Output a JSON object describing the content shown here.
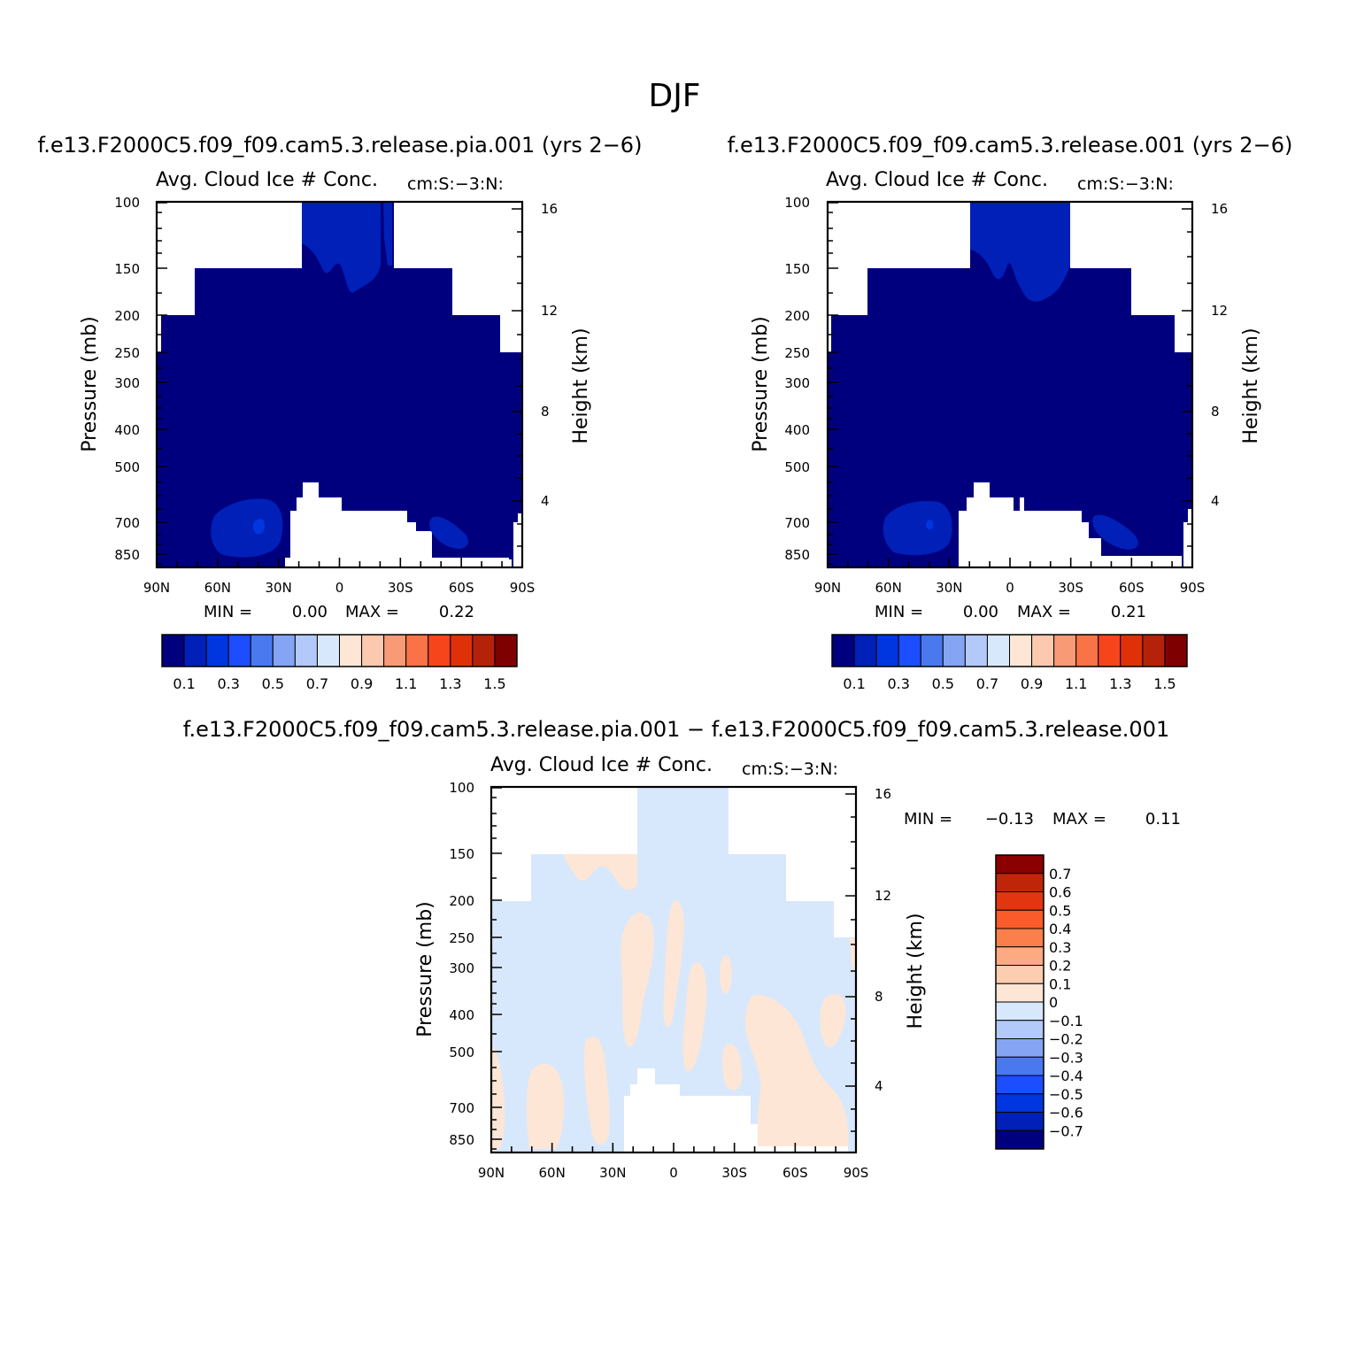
{
  "figure": {
    "title": "DJF"
  },
  "chart_data": [
    {
      "type": "heatmap",
      "case": "f.e13.F2000C5.f09_f09.cam5.3.release.pia.001 (yrs 2−6)",
      "variable": "Avg. Cloud Ice # Conc.",
      "units": "cm:S:−3:N:",
      "x_ticks": [
        "90N",
        "60N",
        "30N",
        "0",
        "30S",
        "60S",
        "90S"
      ],
      "y_ticks": [
        "100",
        "150",
        "200",
        "250",
        "300",
        "400",
        "500",
        "700",
        "850"
      ],
      "y_label": "Pressure (mb)",
      "y2_ticks": [
        "16",
        "12",
        "8",
        "4"
      ],
      "y2_label": "Height (km)",
      "stats": {
        "min_label": "MIN =",
        "min": "0.00",
        "max_label": "MAX =",
        "max": "0.22"
      },
      "colorbar": {
        "levels": [
          "0.1",
          "0.2",
          "0.3",
          "0.4",
          "0.5",
          "0.6",
          "0.7",
          "0.8",
          "0.9",
          "1",
          "1.1",
          "1.2",
          "1.3",
          "1.4",
          "1.5"
        ],
        "labels": [
          "0.1",
          "0.3",
          "0.5",
          "0.7",
          "0.9",
          "1.1",
          "1.3",
          "1.5"
        ],
        "colors": [
          "#00007f",
          "#0020b8",
          "#0036e0",
          "#1c4dff",
          "#4a79ef",
          "#85a5f4",
          "#b3c9f9",
          "#d8e8fc",
          "#fde6d6",
          "#fcc8b0",
          "#f99a77",
          "#f97347",
          "#f7451b",
          "#df3107",
          "#b42309",
          "#7f0000"
        ]
      }
    },
    {
      "type": "heatmap",
      "case": "f.e13.F2000C5.f09_f09.cam5.3.release.001 (yrs 2−6)",
      "variable": "Avg. Cloud Ice # Conc.",
      "units": "cm:S:−3:N:",
      "x_ticks": [
        "90N",
        "60N",
        "30N",
        "0",
        "30S",
        "60S",
        "90S"
      ],
      "y_ticks": [
        "100",
        "150",
        "200",
        "250",
        "300",
        "400",
        "500",
        "700",
        "850"
      ],
      "y_label": "Pressure (mb)",
      "y2_ticks": [
        "16",
        "12",
        "8",
        "4"
      ],
      "y2_label": "Height (km)",
      "stats": {
        "min_label": "MIN =",
        "min": "0.00",
        "max_label": "MAX =",
        "max": "0.21"
      },
      "colorbar": {
        "levels": [
          "0.1",
          "0.2",
          "0.3",
          "0.4",
          "0.5",
          "0.6",
          "0.7",
          "0.8",
          "0.9",
          "1",
          "1.1",
          "1.2",
          "1.3",
          "1.4",
          "1.5"
        ],
        "labels": [
          "0.1",
          "0.3",
          "0.5",
          "0.7",
          "0.9",
          "1.1",
          "1.3",
          "1.5"
        ],
        "colors": [
          "#00007f",
          "#0020b8",
          "#0036e0",
          "#1c4dff",
          "#4a79ef",
          "#85a5f4",
          "#b3c9f9",
          "#d8e8fc",
          "#fde6d6",
          "#fcc8b0",
          "#f99a77",
          "#f97347",
          "#f7451b",
          "#df3107",
          "#b42309",
          "#7f0000"
        ]
      }
    },
    {
      "type": "heatmap",
      "case": "f.e13.F2000C5.f09_f09.cam5.3.release.pia.001 − f.e13.F2000C5.f09_f09.cam5.3.release.001",
      "variable": "Avg. Cloud Ice # Conc.",
      "units": "cm:S:−3:N:",
      "x_ticks": [
        "90N",
        "60N",
        "30N",
        "0",
        "30S",
        "60S",
        "90S"
      ],
      "y_ticks": [
        "100",
        "150",
        "200",
        "250",
        "300",
        "400",
        "500",
        "700",
        "850"
      ],
      "y_label": "Pressure (mb)",
      "y2_ticks": [
        "16",
        "12",
        "8",
        "4"
      ],
      "y2_label": "Height (km)",
      "stats": {
        "min_label": "MIN =",
        "min": "−0.13",
        "max_label": "MAX =",
        "max": "0.11"
      },
      "colorbar": {
        "labels": [
          "0.7",
          "0.6",
          "0.5",
          "0.4",
          "0.3",
          "0.2",
          "0.1",
          "0",
          "−0.1",
          "−0.2",
          "−0.3",
          "−0.4",
          "−0.5",
          "−0.6",
          "−0.7"
        ],
        "colors": [
          "#8b0000",
          "#bf2508",
          "#e23610",
          "#fb5a2a",
          "#fb7f4a",
          "#fcaa82",
          "#fdcdb2",
          "#fde6d6",
          "#d8e8fc",
          "#b3c9f9",
          "#85a5f4",
          "#4a79ef",
          "#1c4dff",
          "#0036e0",
          "#0020b8",
          "#00007f"
        ]
      }
    }
  ]
}
